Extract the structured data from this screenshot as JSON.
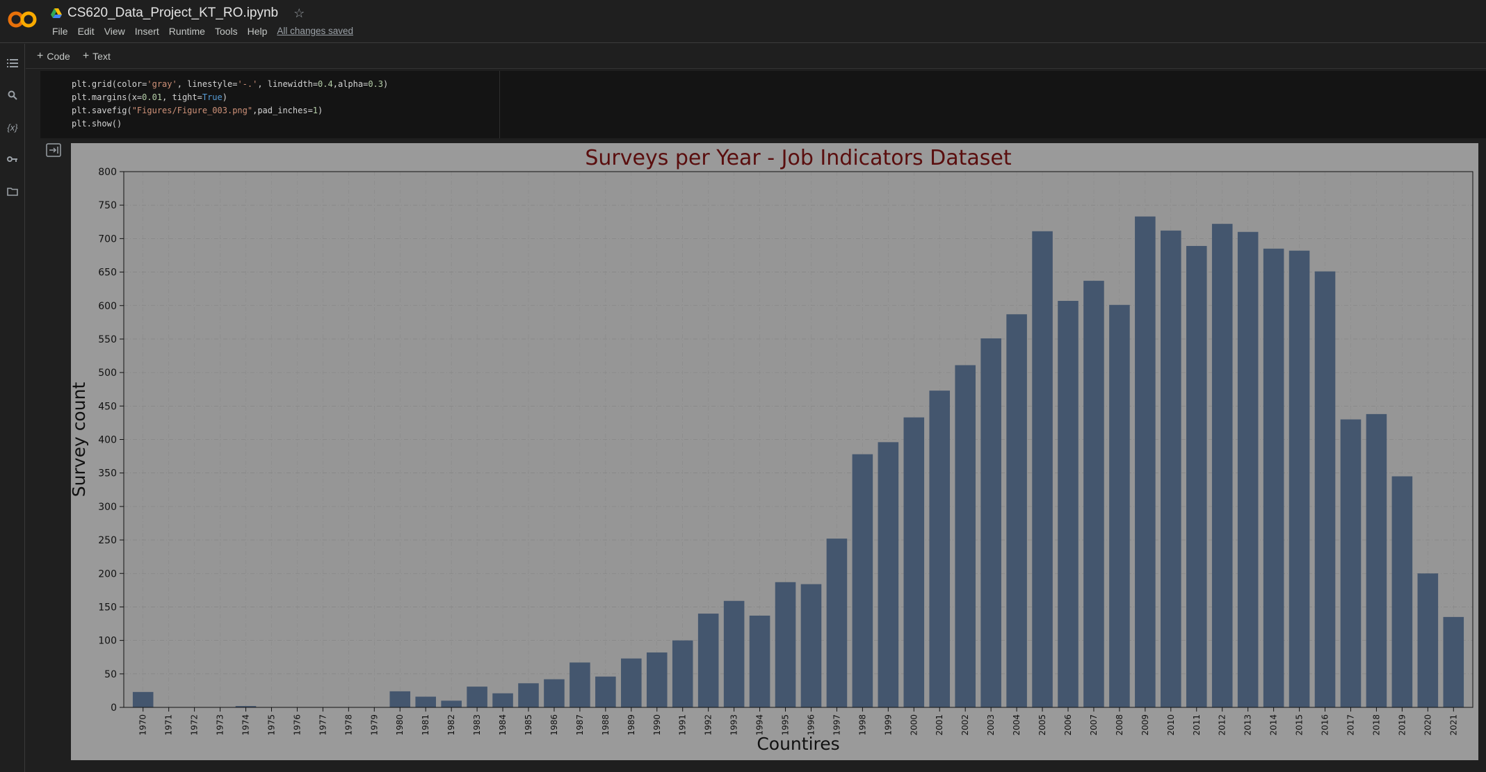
{
  "app": {
    "notebook_title": "CS620_Data_Project_KT_RO.ipynb",
    "save_status": "All changes saved",
    "menu": [
      "File",
      "Edit",
      "View",
      "Insert",
      "Runtime",
      "Tools",
      "Help"
    ]
  },
  "toolbar": {
    "code_label": "Code",
    "text_label": "Text"
  },
  "sidebar": {
    "icons": [
      "table-of-contents-icon",
      "search-icon",
      "variables-icon",
      "key-icon",
      "folder-icon"
    ],
    "variables_glyph": "{x}"
  },
  "cell": {
    "code_lines": [
      "plt.grid(color='gray', linestyle='-.', linewidth=0.4,alpha=0.3)",
      "plt.margins(x=0.01, tight=True)",
      "plt.savefig(\"Figures/Figure_003.png\",pad_inches=1)",
      "plt.show()"
    ]
  },
  "colors": {
    "bar": "#44566e",
    "figure_bg": "#9a9a9a",
    "title": "#5a0e0e",
    "brand_orange": "#e8710a"
  },
  "chart_data": {
    "type": "bar",
    "title": "Surveys per Year - Job Indicators Dataset",
    "xlabel": "Countires",
    "ylabel": "Survey count",
    "ylim": [
      0,
      800
    ],
    "yticks": [
      0,
      50,
      100,
      150,
      200,
      250,
      300,
      350,
      400,
      450,
      500,
      550,
      600,
      650,
      700,
      750,
      800
    ],
    "grid": true,
    "categories": [
      "1970",
      "1971",
      "1972",
      "1973",
      "1974",
      "1975",
      "1976",
      "1977",
      "1978",
      "1979",
      "1980",
      "1981",
      "1982",
      "1983",
      "1984",
      "1985",
      "1986",
      "1987",
      "1988",
      "1989",
      "1990",
      "1991",
      "1992",
      "1993",
      "1994",
      "1995",
      "1996",
      "1997",
      "1998",
      "1999",
      "2000",
      "2001",
      "2002",
      "2003",
      "2004",
      "2005",
      "2006",
      "2007",
      "2008",
      "2009",
      "2010",
      "2011",
      "2012",
      "2013",
      "2014",
      "2015",
      "2016",
      "2017",
      "2018",
      "2019",
      "2020",
      "2021"
    ],
    "values": [
      23,
      0,
      0,
      0,
      2,
      0,
      0,
      0,
      0,
      0,
      24,
      16,
      10,
      31,
      21,
      36,
      42,
      67,
      46,
      73,
      82,
      100,
      140,
      159,
      137,
      187,
      184,
      252,
      378,
      396,
      433,
      473,
      511,
      551,
      587,
      711,
      607,
      637,
      601,
      733,
      712,
      689,
      722,
      710,
      685,
      682,
      651,
      430,
      438,
      345,
      200,
      135
    ]
  }
}
